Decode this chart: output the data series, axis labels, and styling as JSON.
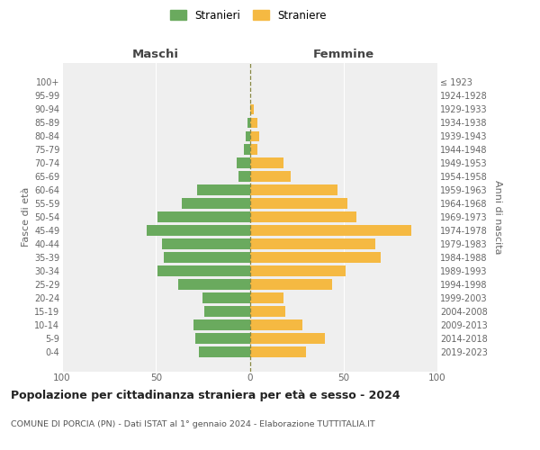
{
  "age_groups": [
    "0-4",
    "5-9",
    "10-14",
    "15-19",
    "20-24",
    "25-29",
    "30-34",
    "35-39",
    "40-44",
    "45-49",
    "50-54",
    "55-59",
    "60-64",
    "65-69",
    "70-74",
    "75-79",
    "80-84",
    "85-89",
    "90-94",
    "95-99",
    "100+"
  ],
  "birth_years": [
    "2019-2023",
    "2014-2018",
    "2009-2013",
    "2004-2008",
    "1999-2003",
    "1994-1998",
    "1989-1993",
    "1984-1988",
    "1979-1983",
    "1974-1978",
    "1969-1973",
    "1964-1968",
    "1959-1963",
    "1954-1958",
    "1949-1953",
    "1944-1948",
    "1939-1943",
    "1934-1938",
    "1929-1933",
    "1924-1928",
    "≤ 1923"
  ],
  "maschi": [
    27,
    29,
    30,
    24,
    25,
    38,
    49,
    46,
    47,
    55,
    49,
    36,
    28,
    6,
    7,
    3,
    2,
    1,
    0,
    0,
    0
  ],
  "femmine": [
    30,
    40,
    28,
    19,
    18,
    44,
    51,
    70,
    67,
    86,
    57,
    52,
    47,
    22,
    18,
    4,
    5,
    4,
    2,
    0,
    0
  ],
  "color_maschi": "#6aaa5e",
  "color_femmine": "#f5b942",
  "color_dashed_line": "#888844",
  "title": "Popolazione per cittadinanza straniera per età e sesso - 2024",
  "subtitle": "COMUNE DI PORCIA (PN) - Dati ISTAT al 1° gennaio 2024 - Elaborazione TUTTITALIA.IT",
  "xlabel_left": "Maschi",
  "xlabel_right": "Femmine",
  "ylabel_left": "Fasce di età",
  "ylabel_right": "Anni di nascita",
  "legend_maschi": "Stranieri",
  "legend_femmine": "Straniere",
  "xlim": 100,
  "background_color": "#ffffff",
  "plot_bg_color": "#efefef"
}
